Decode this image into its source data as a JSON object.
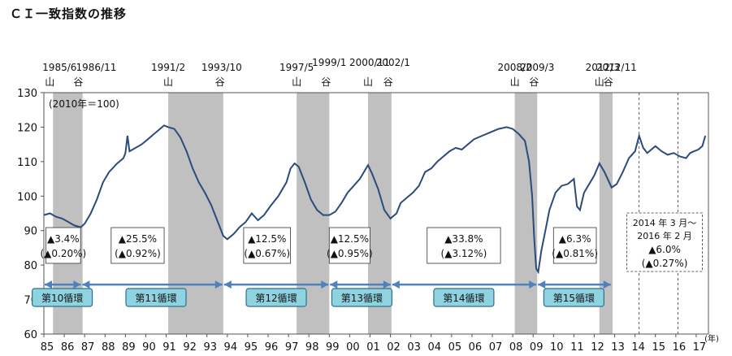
{
  "chart_data": {
    "type": "line",
    "title": "ＣＩ一致指数の推移",
    "base_note": "(2010年＝100)",
    "xunit": "(年)",
    "ylim": [
      60,
      130
    ],
    "yticks": [
      60,
      70,
      80,
      90,
      100,
      110,
      120,
      130
    ],
    "xlim": [
      1985.0,
      2017.6
    ],
    "xticks": [
      "85",
      "86",
      "87",
      "88",
      "89",
      "90",
      "91",
      "92",
      "93",
      "94",
      "95",
      "96",
      "97",
      "98",
      "99",
      "00",
      "01",
      "02",
      "03",
      "04",
      "05",
      "06",
      "07",
      "08",
      "09",
      "10",
      "11",
      "12",
      "13",
      "14",
      "15",
      "16",
      "17"
    ],
    "recessions": [
      {
        "start": 1985.45,
        "end": 1986.9
      },
      {
        "start": 1991.1,
        "end": 1993.8
      },
      {
        "start": 1997.4,
        "end": 1999.0
      },
      {
        "start": 2000.9,
        "end": 2002.05
      },
      {
        "start": 2008.1,
        "end": 2009.2
      },
      {
        "start": 2012.25,
        "end": 2012.9
      }
    ],
    "dashed_lines": [
      2014.2,
      2016.1
    ],
    "turning_points": [
      {
        "date": "1985/6",
        "kind": "山",
        "x": 1985.45
      },
      {
        "date": "1986/11",
        "kind": "谷",
        "x": 1986.85
      },
      {
        "date": "1991/2",
        "kind": "山",
        "x": 1991.1
      },
      {
        "date": "1993/10",
        "kind": "谷",
        "x": 1993.8
      },
      {
        "date": "1997/5",
        "kind": "山",
        "x": 1997.4
      },
      {
        "date": "1999/1",
        "kind": "谷",
        "x": 1999.0
      },
      {
        "date": "2000/11",
        "kind": "山",
        "x": 2000.9
      },
      {
        "date": "2002/1",
        "kind": "谷",
        "x": 2002.05
      },
      {
        "date": "2008/2",
        "kind": "山",
        "x": 2008.1
      },
      {
        "date": "2009/3",
        "kind": "谷",
        "x": 2009.2
      },
      {
        "date": "2012/3",
        "kind": "山",
        "x": 2012.25
      },
      {
        "date": "2012/11",
        "kind": "谷",
        "x": 2012.85
      }
    ],
    "series": [
      {
        "color": "#2a4b7c",
        "points": [
          [
            1985.0,
            94.5
          ],
          [
            1985.3,
            95.0
          ],
          [
            1985.6,
            94.0
          ],
          [
            1985.9,
            93.5
          ],
          [
            1986.2,
            92.5
          ],
          [
            1986.5,
            91.5
          ],
          [
            1986.8,
            91.0
          ],
          [
            1987.0,
            92.0
          ],
          [
            1987.3,
            95.0
          ],
          [
            1987.6,
            99.0
          ],
          [
            1987.9,
            104.0
          ],
          [
            1988.2,
            107.0
          ],
          [
            1988.6,
            109.5
          ],
          [
            1988.9,
            111.0
          ],
          [
            1989.0,
            112.5
          ],
          [
            1989.1,
            117.5
          ],
          [
            1989.2,
            113.0
          ],
          [
            1989.5,
            114.0
          ],
          [
            1989.8,
            115.0
          ],
          [
            1990.1,
            116.5
          ],
          [
            1990.4,
            118.0
          ],
          [
            1990.7,
            119.5
          ],
          [
            1990.9,
            120.5
          ],
          [
            1991.1,
            120.0
          ],
          [
            1991.4,
            119.5
          ],
          [
            1991.7,
            117.0
          ],
          [
            1992.0,
            113.0
          ],
          [
            1992.3,
            108.0
          ],
          [
            1992.6,
            104.0
          ],
          [
            1992.9,
            101.0
          ],
          [
            1993.2,
            97.5
          ],
          [
            1993.5,
            93.0
          ],
          [
            1993.8,
            88.5
          ],
          [
            1994.0,
            87.5
          ],
          [
            1994.3,
            89.0
          ],
          [
            1994.6,
            91.0
          ],
          [
            1994.9,
            92.5
          ],
          [
            1995.2,
            95.0
          ],
          [
            1995.5,
            93.0
          ],
          [
            1995.8,
            94.5
          ],
          [
            1996.1,
            97.0
          ],
          [
            1996.5,
            100.0
          ],
          [
            1996.9,
            104.0
          ],
          [
            1997.1,
            108.0
          ],
          [
            1997.3,
            109.5
          ],
          [
            1997.5,
            108.5
          ],
          [
            1997.8,
            104.0
          ],
          [
            1998.1,
            99.0
          ],
          [
            1998.4,
            96.0
          ],
          [
            1998.7,
            94.5
          ],
          [
            1999.0,
            94.5
          ],
          [
            1999.3,
            95.5
          ],
          [
            1999.6,
            98.0
          ],
          [
            1999.9,
            101.0
          ],
          [
            2000.2,
            103.0
          ],
          [
            2000.5,
            105.0
          ],
          [
            2000.9,
            109.0
          ],
          [
            2001.1,
            106.5
          ],
          [
            2001.4,
            102.0
          ],
          [
            2001.7,
            96.0
          ],
          [
            2002.0,
            93.5
          ],
          [
            2002.3,
            95.0
          ],
          [
            2002.5,
            98.0
          ],
          [
            2002.8,
            99.5
          ],
          [
            2003.1,
            101.0
          ],
          [
            2003.4,
            103.0
          ],
          [
            2003.7,
            107.0
          ],
          [
            2004.0,
            108.0
          ],
          [
            2004.3,
            110.0
          ],
          [
            2004.6,
            111.5
          ],
          [
            2004.9,
            113.0
          ],
          [
            2005.2,
            114.0
          ],
          [
            2005.5,
            113.5
          ],
          [
            2005.8,
            115.0
          ],
          [
            2006.1,
            116.5
          ],
          [
            2006.5,
            117.5
          ],
          [
            2006.9,
            118.5
          ],
          [
            2007.3,
            119.5
          ],
          [
            2007.7,
            120.0
          ],
          [
            2008.0,
            119.5
          ],
          [
            2008.3,
            118.0
          ],
          [
            2008.6,
            116.0
          ],
          [
            2008.8,
            110.0
          ],
          [
            2008.95,
            100.0
          ],
          [
            2009.05,
            88.0
          ],
          [
            2009.15,
            79.0
          ],
          [
            2009.25,
            78.0
          ],
          [
            2009.4,
            84.0
          ],
          [
            2009.6,
            90.0
          ],
          [
            2009.8,
            96.0
          ],
          [
            2010.1,
            101.0
          ],
          [
            2010.4,
            103.0
          ],
          [
            2010.7,
            103.5
          ],
          [
            2011.0,
            105.0
          ],
          [
            2011.15,
            97.0
          ],
          [
            2011.3,
            96.0
          ],
          [
            2011.5,
            101.0
          ],
          [
            2011.8,
            104.0
          ],
          [
            2012.0,
            106.0
          ],
          [
            2012.25,
            109.5
          ],
          [
            2012.5,
            107.0
          ],
          [
            2012.85,
            102.5
          ],
          [
            2013.1,
            103.5
          ],
          [
            2013.4,
            107.0
          ],
          [
            2013.7,
            111.0
          ],
          [
            2014.0,
            113.0
          ],
          [
            2014.2,
            117.5
          ],
          [
            2014.4,
            114.0
          ],
          [
            2014.6,
            112.5
          ],
          [
            2014.8,
            113.5
          ],
          [
            2015.0,
            114.5
          ],
          [
            2015.3,
            113.0
          ],
          [
            2015.6,
            112.0
          ],
          [
            2015.9,
            112.5
          ],
          [
            2016.2,
            111.5
          ],
          [
            2016.5,
            111.0
          ],
          [
            2016.7,
            112.5
          ],
          [
            2016.9,
            113.0
          ],
          [
            2017.1,
            113.5
          ],
          [
            2017.3,
            114.5
          ],
          [
            2017.45,
            117.5
          ]
        ]
      }
    ],
    "annotations": [
      {
        "x1": 1985.1,
        "x2": 1986.8,
        "line1": "▲3.4%",
        "line2": "(▲0.20%)"
      },
      {
        "x1": 1988.3,
        "x2": 1990.9,
        "line1": "▲25.5%",
        "line2": "(▲0.92%)"
      },
      {
        "x1": 1994.8,
        "x2": 1997.1,
        "line1": "▲12.5%",
        "line2": "(▲0.67%)"
      },
      {
        "x1": 1999.0,
        "x2": 2001.0,
        "line1": "▲12.5%",
        "line2": "(▲0.95%)"
      },
      {
        "x1": 2003.8,
        "x2": 2007.4,
        "line1": "▲33.8%",
        "line2": "(▲3.12%)"
      },
      {
        "x1": 2010.0,
        "x2": 2012.1,
        "line1": "▲6.3%",
        "line2": "(▲0.81%)"
      }
    ],
    "last_annotation": {
      "x1": 2013.6,
      "x2": 2017.3,
      "line1": "2014 年 3 月～",
      "line2": "2016 年 2 月",
      "line3": "▲6.0%",
      "line4": "(▲0.27%)"
    },
    "cycle_arrows": [
      {
        "x1": 1985.0,
        "x2": 1986.85,
        "y": 76
      },
      {
        "x1": 1986.85,
        "x2": 1993.8,
        "y": 76
      },
      {
        "x1": 1993.8,
        "x2": 1999.0,
        "y": 76
      },
      {
        "x1": 1999.0,
        "x2": 2002.05,
        "y": 76
      },
      {
        "x1": 2002.05,
        "x2": 2009.2,
        "y": 76
      },
      {
        "x1": 2009.2,
        "x2": 2012.85,
        "y": 76
      }
    ],
    "cycles": [
      {
        "label": "第10循環",
        "x": 1985.9
      },
      {
        "label": "第11循環",
        "x": 1990.5
      },
      {
        "label": "第12循環",
        "x": 1996.4
      },
      {
        "label": "第13循環",
        "x": 2000.6
      },
      {
        "label": "第14循環",
        "x": 2005.6
      },
      {
        "label": "第15循環",
        "x": 2011.0
      }
    ],
    "colors": {
      "line": "#2a4b7c",
      "shade": "#c0c0c0",
      "arrow": "#4f81bd",
      "badge_fill": "#8fd3e0",
      "badge_stroke": "#2f6f8a"
    }
  }
}
